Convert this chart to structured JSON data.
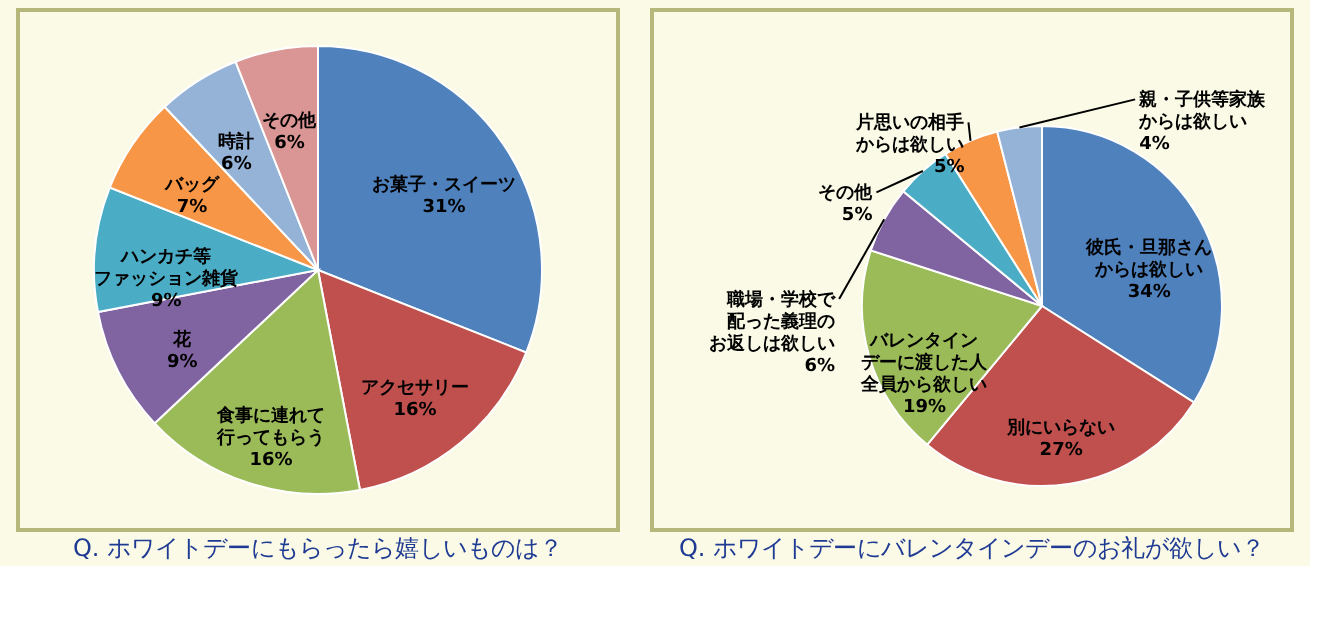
{
  "chart_data": [
    {
      "type": "pie",
      "title": "Q. ホワイトデーにもらったら嬉しいものは？",
      "categories": [
        "お菓子・スイーツ",
        "アクセサリー",
        "食事に連れて行ってもらう",
        "花",
        "ハンカチ等ファッション雑貨",
        "バッグ",
        "時計",
        "その他"
      ],
      "values": [
        31,
        16,
        16,
        9,
        9,
        7,
        6,
        6
      ],
      "value_labels": [
        "31%",
        "16%",
        "16%",
        "9%",
        "9%",
        "7%",
        "6%",
        "6%"
      ],
      "colors": [
        "#4f81bd",
        "#c0504d",
        "#9bbb59",
        "#8064a2",
        "#4bacc6",
        "#f79646",
        "#95b3d7",
        "#d99694"
      ]
    },
    {
      "type": "pie",
      "title": "Q. ホワイトデーにバレンタインデーのお礼が欲しい？",
      "categories": [
        "彼氏・旦那さんからは欲しい",
        "別にいらない",
        "バレンタインデーに渡した人全員から欲しい",
        "職場・学校で配った義理のお返しは欲しい",
        "その他",
        "片思いの相手からは欲しい",
        "親・子供等家族からは欲しい"
      ],
      "values": [
        34,
        27,
        19,
        6,
        5,
        5,
        4
      ],
      "value_labels": [
        "34%",
        "27%",
        "19%",
        "6%",
        "5%",
        "5%",
        "4%"
      ],
      "colors": [
        "#4f81bd",
        "#c0504d",
        "#9bbb59",
        "#8064a2",
        "#4bacc6",
        "#f79646",
        "#95b3d7"
      ]
    }
  ]
}
